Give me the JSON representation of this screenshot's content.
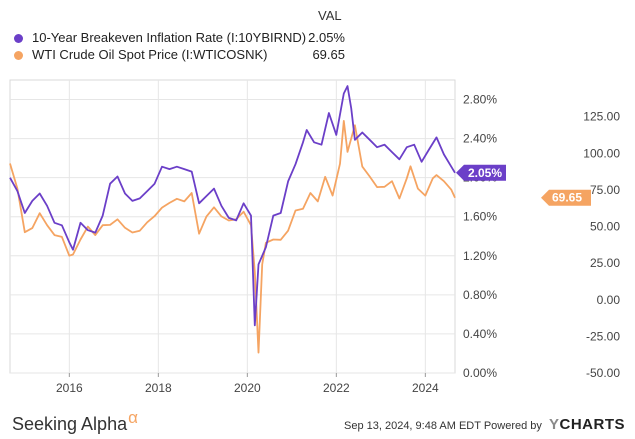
{
  "legend": {
    "header": "VAL",
    "items": [
      {
        "label": "10-Year Breakeven Inflation Rate (I:10YBIRND)",
        "value": "2.05%",
        "color": "#6b3fc8"
      },
      {
        "label": "WTI Crude Oil Spot Price (I:WTICOSNK)",
        "value": "69.65",
        "color": "#f5a462"
      }
    ]
  },
  "chart_data": {
    "type": "line",
    "x_axis": {
      "type": "date",
      "ticks": [
        "2016",
        "2018",
        "2020",
        "2022",
        "2024"
      ],
      "range": [
        "2014-09",
        "2024-09"
      ]
    },
    "y_axis_left": {
      "ticks": [
        "2.80%",
        "2.40%",
        "2.00%",
        "1.60%",
        "1.20%",
        "0.80%",
        "0.40%",
        "0.00%"
      ],
      "range": [
        0.0,
        3.0
      ]
    },
    "y_axis_right": {
      "ticks": [
        "125.00",
        "100.00",
        "75.00",
        "50.00",
        "25.00",
        "0.00",
        "-25.00",
        "-50.00"
      ],
      "range": [
        -50,
        150
      ]
    },
    "series": [
      {
        "name": "10-Year Breakeven Inflation Rate (I:10YBIRND)",
        "axis": "left",
        "color": "#6b3fc8",
        "last_label": "2.05%",
        "points": [
          [
            "2014-09",
            2.0
          ],
          [
            "2014-11",
            1.85
          ],
          [
            "2015-01",
            1.65
          ],
          [
            "2015-03",
            1.75
          ],
          [
            "2015-05",
            1.85
          ],
          [
            "2015-07",
            1.7
          ],
          [
            "2015-09",
            1.55
          ],
          [
            "2015-11",
            1.5
          ],
          [
            "2016-01",
            1.35
          ],
          [
            "2016-02",
            1.25
          ],
          [
            "2016-04",
            1.55
          ],
          [
            "2016-06",
            1.45
          ],
          [
            "2016-08",
            1.45
          ],
          [
            "2016-10",
            1.6
          ],
          [
            "2016-12",
            1.95
          ],
          [
            "2017-02",
            2.0
          ],
          [
            "2017-04",
            1.85
          ],
          [
            "2017-06",
            1.75
          ],
          [
            "2017-08",
            1.8
          ],
          [
            "2017-10",
            1.85
          ],
          [
            "2017-12",
            1.95
          ],
          [
            "2018-02",
            2.1
          ],
          [
            "2018-04",
            2.1
          ],
          [
            "2018-06",
            2.1
          ],
          [
            "2018-08",
            2.1
          ],
          [
            "2018-10",
            2.05
          ],
          [
            "2018-12",
            1.75
          ],
          [
            "2019-02",
            1.8
          ],
          [
            "2019-04",
            1.9
          ],
          [
            "2019-06",
            1.7
          ],
          [
            "2019-08",
            1.6
          ],
          [
            "2019-10",
            1.55
          ],
          [
            "2019-12",
            1.75
          ],
          [
            "2020-02",
            1.6
          ],
          [
            "2020-03",
            0.5
          ],
          [
            "2020-04",
            1.1
          ],
          [
            "2020-06",
            1.3
          ],
          [
            "2020-08",
            1.6
          ],
          [
            "2020-10",
            1.65
          ],
          [
            "2020-12",
            1.95
          ],
          [
            "2021-02",
            2.15
          ],
          [
            "2021-04",
            2.35
          ],
          [
            "2021-05",
            2.5
          ],
          [
            "2021-07",
            2.35
          ],
          [
            "2021-09",
            2.35
          ],
          [
            "2021-11",
            2.65
          ],
          [
            "2022-01",
            2.45
          ],
          [
            "2022-03",
            2.85
          ],
          [
            "2022-04",
            2.95
          ],
          [
            "2022-05",
            2.7
          ],
          [
            "2022-06",
            2.4
          ],
          [
            "2022-08",
            2.45
          ],
          [
            "2022-10",
            2.4
          ],
          [
            "2022-12",
            2.3
          ],
          [
            "2023-02",
            2.35
          ],
          [
            "2023-04",
            2.25
          ],
          [
            "2023-06",
            2.2
          ],
          [
            "2023-08",
            2.3
          ],
          [
            "2023-10",
            2.35
          ],
          [
            "2023-12",
            2.15
          ],
          [
            "2024-02",
            2.3
          ],
          [
            "2024-04",
            2.4
          ],
          [
            "2024-06",
            2.25
          ],
          [
            "2024-08",
            2.1
          ],
          [
            "2024-09",
            2.05
          ]
        ]
      },
      {
        "name": "WTI Crude Oil Spot Price (I:WTICOSNK)",
        "axis": "right",
        "color": "#f5a462",
        "last_label": "69.65",
        "points": [
          [
            "2014-09",
            93
          ],
          [
            "2014-11",
            75
          ],
          [
            "2015-01",
            47
          ],
          [
            "2015-03",
            48
          ],
          [
            "2015-05",
            60
          ],
          [
            "2015-07",
            50
          ],
          [
            "2015-09",
            45
          ],
          [
            "2015-11",
            42
          ],
          [
            "2016-01",
            31
          ],
          [
            "2016-02",
            30
          ],
          [
            "2016-04",
            42
          ],
          [
            "2016-06",
            49
          ],
          [
            "2016-08",
            45
          ],
          [
            "2016-10",
            50
          ],
          [
            "2016-12",
            52
          ],
          [
            "2017-02",
            54
          ],
          [
            "2017-04",
            50
          ],
          [
            "2017-06",
            45
          ],
          [
            "2017-08",
            48
          ],
          [
            "2017-10",
            52
          ],
          [
            "2017-12",
            58
          ],
          [
            "2018-02",
            62
          ],
          [
            "2018-04",
            67
          ],
          [
            "2018-06",
            68
          ],
          [
            "2018-08",
            68
          ],
          [
            "2018-10",
            72
          ],
          [
            "2018-12",
            46
          ],
          [
            "2019-02",
            56
          ],
          [
            "2019-04",
            64
          ],
          [
            "2019-06",
            56
          ],
          [
            "2019-08",
            55
          ],
          [
            "2019-10",
            54
          ],
          [
            "2019-12",
            61
          ],
          [
            "2020-02",
            50
          ],
          [
            "2020-03",
            20
          ],
          [
            "2020-04",
            -37
          ],
          [
            "2020-05",
            25
          ],
          [
            "2020-06",
            38
          ],
          [
            "2020-08",
            42
          ],
          [
            "2020-10",
            40
          ],
          [
            "2020-12",
            48
          ],
          [
            "2021-02",
            60
          ],
          [
            "2021-04",
            63
          ],
          [
            "2021-06",
            72
          ],
          [
            "2021-08",
            68
          ],
          [
            "2021-10",
            83
          ],
          [
            "2021-12",
            72
          ],
          [
            "2022-02",
            92
          ],
          [
            "2022-03",
            123
          ],
          [
            "2022-04",
            100
          ],
          [
            "2022-06",
            120
          ],
          [
            "2022-08",
            90
          ],
          [
            "2022-10",
            85
          ],
          [
            "2022-12",
            76
          ],
          [
            "2023-02",
            78
          ],
          [
            "2023-04",
            80
          ],
          [
            "2023-06",
            70
          ],
          [
            "2023-08",
            82
          ],
          [
            "2023-09",
            92
          ],
          [
            "2023-11",
            75
          ],
          [
            "2024-01",
            72
          ],
          [
            "2024-03",
            82
          ],
          [
            "2024-04",
            86
          ],
          [
            "2024-06",
            80
          ],
          [
            "2024-08",
            76
          ],
          [
            "2024-09",
            69.65
          ]
        ]
      }
    ]
  },
  "footer": {
    "brand_left": "Seeking Alpha",
    "brand_left_mark": "α",
    "timestamp": "Sep 13, 2024, 9:48 AM EDT",
    "powered_by": "Powered by",
    "brand_right_y": "Y",
    "brand_right_rest": "CHARTS"
  }
}
